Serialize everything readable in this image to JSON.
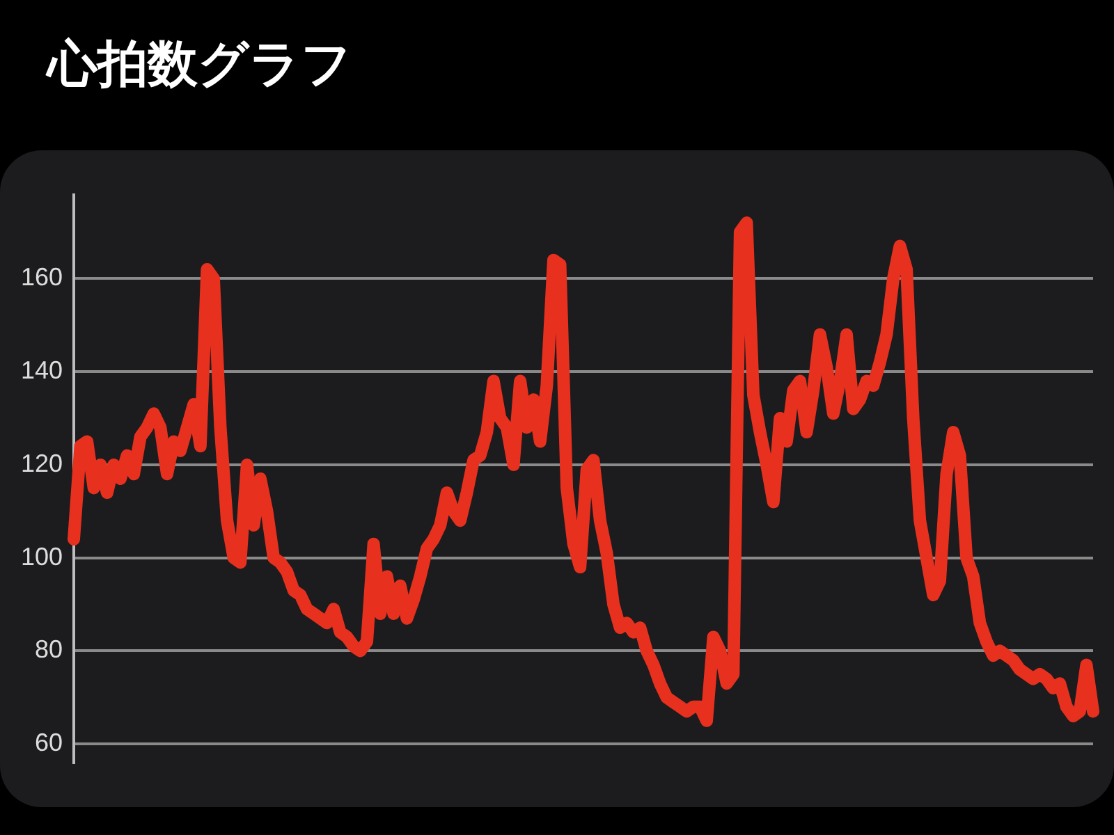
{
  "chart_data": {
    "type": "line",
    "title": "心拍数グラフ",
    "categories": [
      null,
      null,
      null,
      null,
      null,
      null,
      null,
      null,
      null,
      null,
      null,
      null,
      null,
      null,
      null,
      null,
      null,
      null,
      null,
      null,
      null,
      null,
      null,
      null,
      null,
      null,
      null,
      null,
      null,
      null,
      null,
      null,
      null,
      null,
      null,
      null,
      null,
      null,
      null,
      null,
      null,
      null,
      null,
      null,
      null,
      null,
      null,
      null,
      null,
      null,
      null,
      null,
      null,
      null,
      null,
      null,
      null,
      null,
      null,
      null,
      null,
      null,
      null,
      null,
      null,
      null,
      null,
      null,
      null,
      null,
      null,
      null,
      null,
      null,
      null,
      null,
      null,
      null,
      null,
      null,
      null,
      null,
      null,
      null,
      null,
      null,
      null,
      null,
      null,
      null,
      null,
      null,
      null,
      null,
      null,
      null,
      null,
      null,
      null,
      null,
      null,
      null,
      null,
      null,
      null,
      null,
      null,
      null,
      null,
      null,
      null,
      null,
      null,
      null,
      null,
      null,
      null,
      null,
      null,
      null,
      null,
      null,
      null,
      null,
      null,
      null,
      null,
      null,
      null,
      null,
      null,
      null,
      null,
      null,
      null,
      null,
      null,
      null,
      null,
      null,
      null,
      null,
      null,
      null,
      null,
      null,
      null,
      null,
      null,
      null,
      null,
      null,
      null,
      null
    ],
    "values": [
      104,
      124,
      125,
      115,
      120,
      114,
      120,
      117,
      122,
      118,
      126,
      128,
      131,
      128,
      118,
      125,
      123,
      128,
      133,
      124,
      162,
      160,
      128,
      108,
      100,
      99,
      120,
      107,
      117,
      110,
      100,
      99,
      97,
      93,
      92,
      89,
      88,
      87,
      86,
      89,
      84,
      83,
      81,
      80,
      82,
      103,
      88,
      96,
      88,
      94,
      87,
      91,
      96,
      102,
      104,
      107,
      114,
      110,
      108,
      114,
      121,
      122,
      127,
      138,
      130,
      128,
      120,
      138,
      128,
      134,
      125,
      137,
      164,
      163,
      115,
      103,
      98,
      119,
      121,
      108,
      101,
      90,
      85,
      86,
      84,
      85,
      80,
      77,
      73,
      70,
      69,
      68,
      67,
      68,
      68,
      65,
      83,
      80,
      73,
      75,
      170,
      172,
      135,
      127,
      120,
      112,
      130,
      125,
      136,
      138,
      127,
      136,
      148,
      141,
      131,
      138,
      148,
      132,
      134,
      138,
      137,
      142,
      148,
      160,
      167,
      162,
      130,
      108,
      100,
      92,
      95,
      118,
      127,
      122,
      100,
      96,
      86,
      82,
      79,
      80,
      79,
      78,
      76,
      75,
      74,
      75,
      74,
      72,
      73,
      68,
      66,
      67,
      77,
      67
    ],
    "color": "#e8301f",
    "ylim": [
      56,
      178
    ],
    "yticks": [
      60,
      80,
      100,
      120,
      140,
      160
    ],
    "grid": "y"
  }
}
